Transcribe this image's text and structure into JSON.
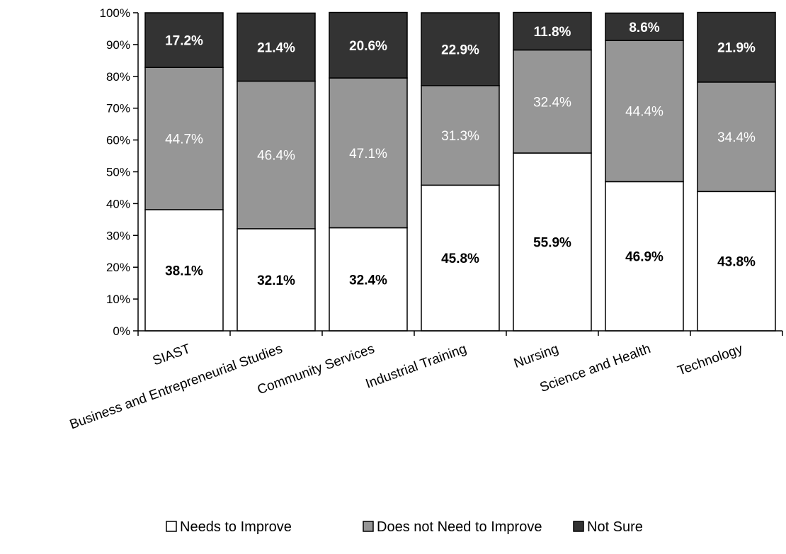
{
  "chart_data": {
    "type": "bar",
    "stacked": true,
    "categories": [
      "SIAST",
      "Business and Entrepreneurial Studies",
      "Community Services",
      "Industrial Training",
      "Nursing",
      "Science and Health",
      "Technology"
    ],
    "series": [
      {
        "name": "Needs to Improve",
        "color": "#ffffff",
        "label_color": "#000000",
        "values": [
          38.1,
          32.1,
          32.4,
          45.8,
          55.9,
          46.9,
          43.8
        ],
        "labels": [
          "38.1%",
          "32.1%",
          "32.4%",
          "45.8%",
          "55.9%",
          "46.9%",
          "43.8%"
        ]
      },
      {
        "name": "Does not Need to Improve",
        "color": "#969696",
        "label_color": "#ffffff",
        "values": [
          44.7,
          46.4,
          47.1,
          31.3,
          32.4,
          44.4,
          34.4
        ],
        "labels": [
          "44.7%",
          "46.4%",
          "47.1%",
          "31.3%",
          "32.4%",
          "44.4%",
          "34.4%"
        ]
      },
      {
        "name": "Not Sure",
        "color": "#333333",
        "label_color": "#ffffff",
        "values": [
          17.2,
          21.4,
          20.6,
          22.9,
          11.8,
          8.6,
          21.9
        ],
        "labels": [
          "17.2%",
          "21.4%",
          "20.6%",
          "22.9%",
          "11.8%",
          "8.6%",
          "21.9%"
        ]
      }
    ],
    "y_ticks": [
      "0%",
      "10%",
      "20%",
      "30%",
      "40%",
      "50%",
      "60%",
      "70%",
      "80%",
      "90%",
      "100%"
    ],
    "ylim": [
      0,
      100
    ],
    "grid": false,
    "legend_position": "bottom"
  }
}
